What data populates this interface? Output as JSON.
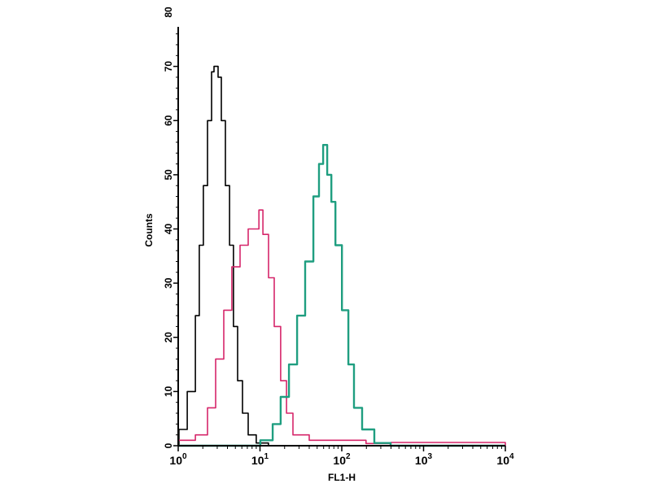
{
  "chart_data": {
    "type": "line",
    "title": "",
    "xlabel": "FL1-H",
    "ylabel": "Counts",
    "xscale": "log",
    "xlim": [
      1,
      10000
    ],
    "ylim": [
      0,
      80
    ],
    "grid": false,
    "x_ticks": [
      {
        "value": 1,
        "base": "10",
        "exp": "0"
      },
      {
        "value": 10,
        "base": "10",
        "exp": "1"
      },
      {
        "value": 100,
        "base": "10",
        "exp": "2"
      },
      {
        "value": 1000,
        "base": "10",
        "exp": "3"
      },
      {
        "value": 10000,
        "base": "10",
        "exp": "4"
      }
    ],
    "y_ticks": [
      "0",
      "10",
      "20",
      "30",
      "40",
      "50",
      "60",
      "70",
      "80"
    ],
    "series": [
      {
        "color": "#000000",
        "points": [
          [
            1,
            0
          ],
          [
            1.02,
            3
          ],
          [
            1.29,
            10
          ],
          [
            1.62,
            24
          ],
          [
            1.81,
            37
          ],
          [
            2.03,
            48
          ],
          [
            2.28,
            60
          ],
          [
            2.56,
            69
          ],
          [
            2.74,
            70
          ],
          [
            3.07,
            68
          ],
          [
            3.37,
            60
          ],
          [
            3.78,
            48
          ],
          [
            4.24,
            37
          ],
          [
            4.74,
            22
          ],
          [
            5.32,
            12
          ],
          [
            6.11,
            6
          ],
          [
            7.17,
            2
          ],
          [
            9.0,
            0.5
          ],
          [
            12.7,
            0
          ],
          [
            100,
            0
          ],
          [
            10000,
            0
          ]
        ]
      },
      {
        "color": "#d6266a",
        "points": [
          [
            1,
            1
          ],
          [
            1.62,
            2
          ],
          [
            2.28,
            7
          ],
          [
            2.87,
            16
          ],
          [
            3.61,
            25
          ],
          [
            4.53,
            33
          ],
          [
            5.7,
            37
          ],
          [
            7.17,
            40
          ],
          [
            8.42,
            40
          ],
          [
            9.7,
            43.5
          ],
          [
            10.85,
            39
          ],
          [
            12.73,
            31
          ],
          [
            14.94,
            22
          ],
          [
            17.9,
            12
          ],
          [
            21.1,
            6
          ],
          [
            25.3,
            2
          ],
          [
            40,
            1
          ],
          [
            198,
            0.4
          ],
          [
            400,
            0.6
          ],
          [
            1000,
            0.6
          ],
          [
            6230,
            0.6
          ],
          [
            10000,
            0
          ]
        ]
      },
      {
        "color": "#1f9e80",
        "points": [
          [
            1,
            0
          ],
          [
            6.4,
            0
          ],
          [
            10.1,
            1
          ],
          [
            14.3,
            4
          ],
          [
            17.9,
            9
          ],
          [
            22.6,
            15
          ],
          [
            28.4,
            24
          ],
          [
            35.7,
            34
          ],
          [
            44.9,
            46
          ],
          [
            52.7,
            52
          ],
          [
            59.2,
            55.5
          ],
          [
            66.4,
            50
          ],
          [
            74.5,
            45
          ],
          [
            83.6,
            37
          ],
          [
            100.5,
            25
          ],
          [
            120.4,
            15
          ],
          [
            140.9,
            7
          ],
          [
            177.2,
            3
          ],
          [
            250,
            0.5
          ],
          [
            395,
            0
          ],
          [
            10000,
            0
          ]
        ]
      }
    ]
  }
}
